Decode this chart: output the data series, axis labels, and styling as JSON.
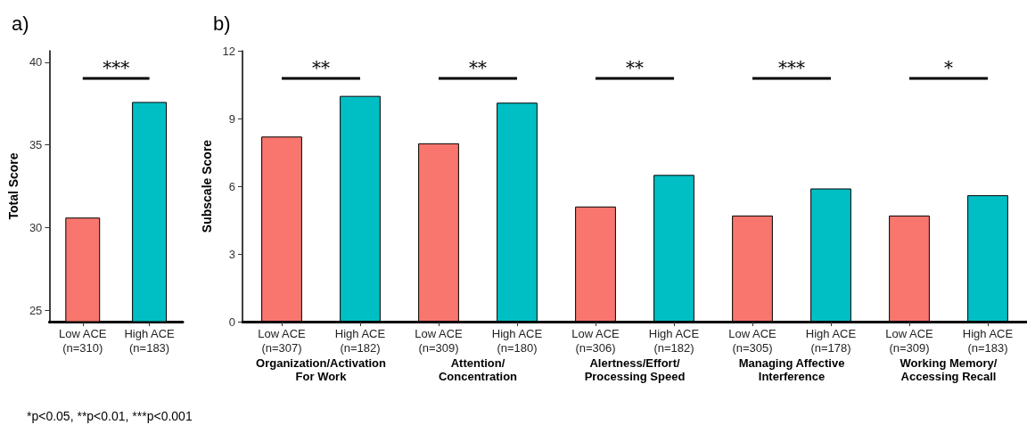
{
  "chart_data": [
    {
      "type": "bar",
      "title": "a)",
      "ylabel": "Total Score",
      "categories": [
        "Low ACE\n(n=310)",
        "High ACE\n(n=183)"
      ],
      "values": [
        30.6,
        37.6
      ],
      "colors": [
        "#f8766d",
        "#00bfc4"
      ],
      "ylim": [
        24.3,
        40.7
      ],
      "yticks": [
        25,
        30,
        35,
        40
      ],
      "annotations": [
        "***"
      ]
    },
    {
      "type": "bar",
      "title": "b)",
      "ylabel": "Subscale Score",
      "categories": [
        "Low ACE\n(n=307)",
        "High ACE\n(n=182)",
        "Low ACE\n(n=309)",
        "High ACE\n(n=180)",
        "Low ACE\n(n=306)",
        "High ACE\n(n=182)",
        "Low ACE\n(n=305)",
        "High ACE\n(n=178)",
        "Low ACE\n(n=309)",
        "High ACE\n(n=183)"
      ],
      "values": [
        8.2,
        10.0,
        7.9,
        9.7,
        5.1,
        6.5,
        4.7,
        5.9,
        4.7,
        5.6
      ],
      "colors": [
        "#f8766d",
        "#00bfc4",
        "#f8766d",
        "#00bfc4",
        "#f8766d",
        "#00bfc4",
        "#f8766d",
        "#00bfc4",
        "#f8766d",
        "#00bfc4"
      ],
      "ylim": [
        0,
        12
      ],
      "yticks": [
        0,
        3,
        6,
        9,
        12
      ],
      "annotations": [
        "**",
        "**",
        "**",
        "***",
        "*",
        "Organization/Activation\nFor Work",
        "Attention/\nConcentration",
        "Alertness/Effort/\nProcessing Speed",
        "Managing Affective\nInterference",
        "Working Memory/\nAccessing Recall",
        "*p<0.05, **p<0.01, ***p<0.001"
      ]
    }
  ]
}
